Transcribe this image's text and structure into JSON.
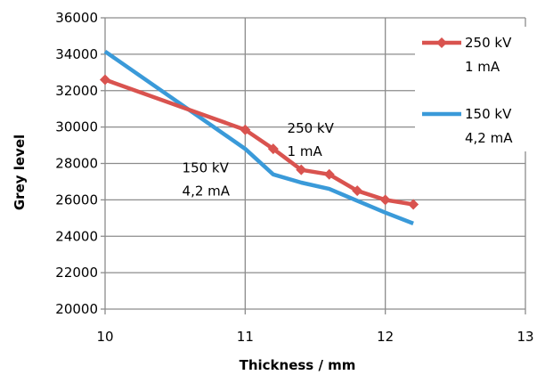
{
  "chart_data": {
    "type": "line",
    "title": "",
    "xlabel": "Thickness / mm",
    "ylabel": "Grey level",
    "xlim": [
      10,
      13
    ],
    "ylim": [
      20000,
      36000
    ],
    "x_ticks": [
      "10",
      "11",
      "12",
      "13"
    ],
    "y_ticks": [
      "20000",
      "22000",
      "24000",
      "26000",
      "28000",
      "30000",
      "32000",
      "34000",
      "36000"
    ],
    "grid": true,
    "legend_position": "right",
    "series": [
      {
        "name_line1": "250 kV",
        "name_line2": "1 mA",
        "color": "#d9534f",
        "marker": "diamond",
        "x": [
          10,
          11,
          11.2,
          11.4,
          11.6,
          11.8,
          12,
          12.2
        ],
        "y": [
          32600,
          29850,
          28800,
          27650,
          27400,
          26500,
          26000,
          25750
        ]
      },
      {
        "name_line1": "150 kV",
        "name_line2": "4,2 mA",
        "color": "#3a9ad9",
        "marker": "none",
        "x": [
          10,
          11,
          11.2,
          11.4,
          11.6,
          11.8,
          12,
          12.2
        ],
        "y": [
          34150,
          28800,
          27400,
          26950,
          26600,
          25950,
          25300,
          24700
        ]
      }
    ],
    "annotations": [
      {
        "line1": "250 kV",
        "line2": "1 mA",
        "x": 11.3,
        "y": 29700
      },
      {
        "line1": "150 kV",
        "line2": "4,2 mA",
        "x": 10.55,
        "y": 27500
      }
    ]
  }
}
